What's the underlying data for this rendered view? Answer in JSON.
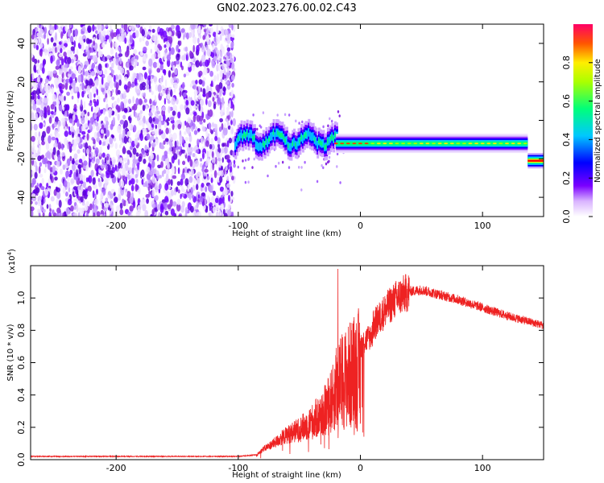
{
  "title": "GN02.2023.276.00.02.C43",
  "chart_data": [
    {
      "type": "heatmap",
      "xlabel": "Height of straight line (km)",
      "ylabel": "Frequency (Hz)",
      "xlim": [
        -270,
        150
      ],
      "ylim": [
        -50,
        50
      ],
      "xticks": [
        -200,
        -100,
        0,
        100
      ],
      "yticks": [
        -40,
        -20,
        0,
        20,
        40
      ],
      "colorbar": {
        "label": "Normalized spectral amplitude",
        "range": [
          0,
          1
        ],
        "ticks": [
          0.0,
          0.2,
          0.4,
          0.6,
          0.8
        ],
        "tick_labels": [
          "0.0",
          "0.2",
          "0.4",
          "0.6",
          "0.8"
        ],
        "colormap": [
          "#ffffff",
          "#6600cc",
          "#0000ff",
          "#00ccff",
          "#00ff66",
          "#ffff00",
          "#ff0000",
          "#ff0066"
        ]
      },
      "regions": [
        {
          "x_range": [
            -270,
            -103
          ],
          "pattern": "broadband noise",
          "amplitude": [
            0.0,
            0.25
          ]
        },
        {
          "x_range": [
            -103,
            -20
          ],
          "center_freq": -10,
          "bandwidth": 10,
          "amplitude_peak": 0.5
        },
        {
          "x_range": [
            -20,
            137
          ],
          "center_freq": -12,
          "bandwidth": 5,
          "amplitude_peak": 0.75
        },
        {
          "x_range": [
            137,
            150
          ],
          "center_freq": -21,
          "bandwidth": 4,
          "amplitude_peak": 0.9
        }
      ]
    },
    {
      "type": "line",
      "xlabel": "Height of straight line (km)",
      "ylabel": "SNR (10 * v/v)",
      "scale_label": "(x10",
      "scale_exp": "4",
      "scale_close": ")",
      "xlim": [
        -270,
        150
      ],
      "ylim": [
        0,
        1.2
      ],
      "xticks": [
        -200,
        -100,
        0,
        100
      ],
      "yticks": [
        0.0,
        0.2,
        0.4,
        0.6,
        0.8,
        1.0
      ],
      "ytick_labels": [
        "0.0",
        "0.2",
        "0.4",
        "0.6",
        "0.8",
        "1.0"
      ],
      "color": "#ee2222",
      "envelope": {
        "x": [
          -270,
          -200,
          -100,
          -85,
          -80,
          -70,
          -60,
          -50,
          -40,
          -30,
          -22,
          -20,
          -15,
          -10,
          -5,
          0,
          10,
          20,
          30,
          40,
          50,
          60,
          80,
          100,
          120,
          150
        ],
        "y": [
          0.02,
          0.02,
          0.02,
          0.03,
          0.07,
          0.12,
          0.18,
          0.22,
          0.28,
          0.36,
          0.48,
          0.55,
          0.62,
          0.66,
          0.7,
          0.74,
          0.82,
          0.92,
          1.0,
          1.04,
          1.05,
          1.03,
          0.99,
          0.94,
          0.89,
          0.83
        ]
      }
    }
  ]
}
